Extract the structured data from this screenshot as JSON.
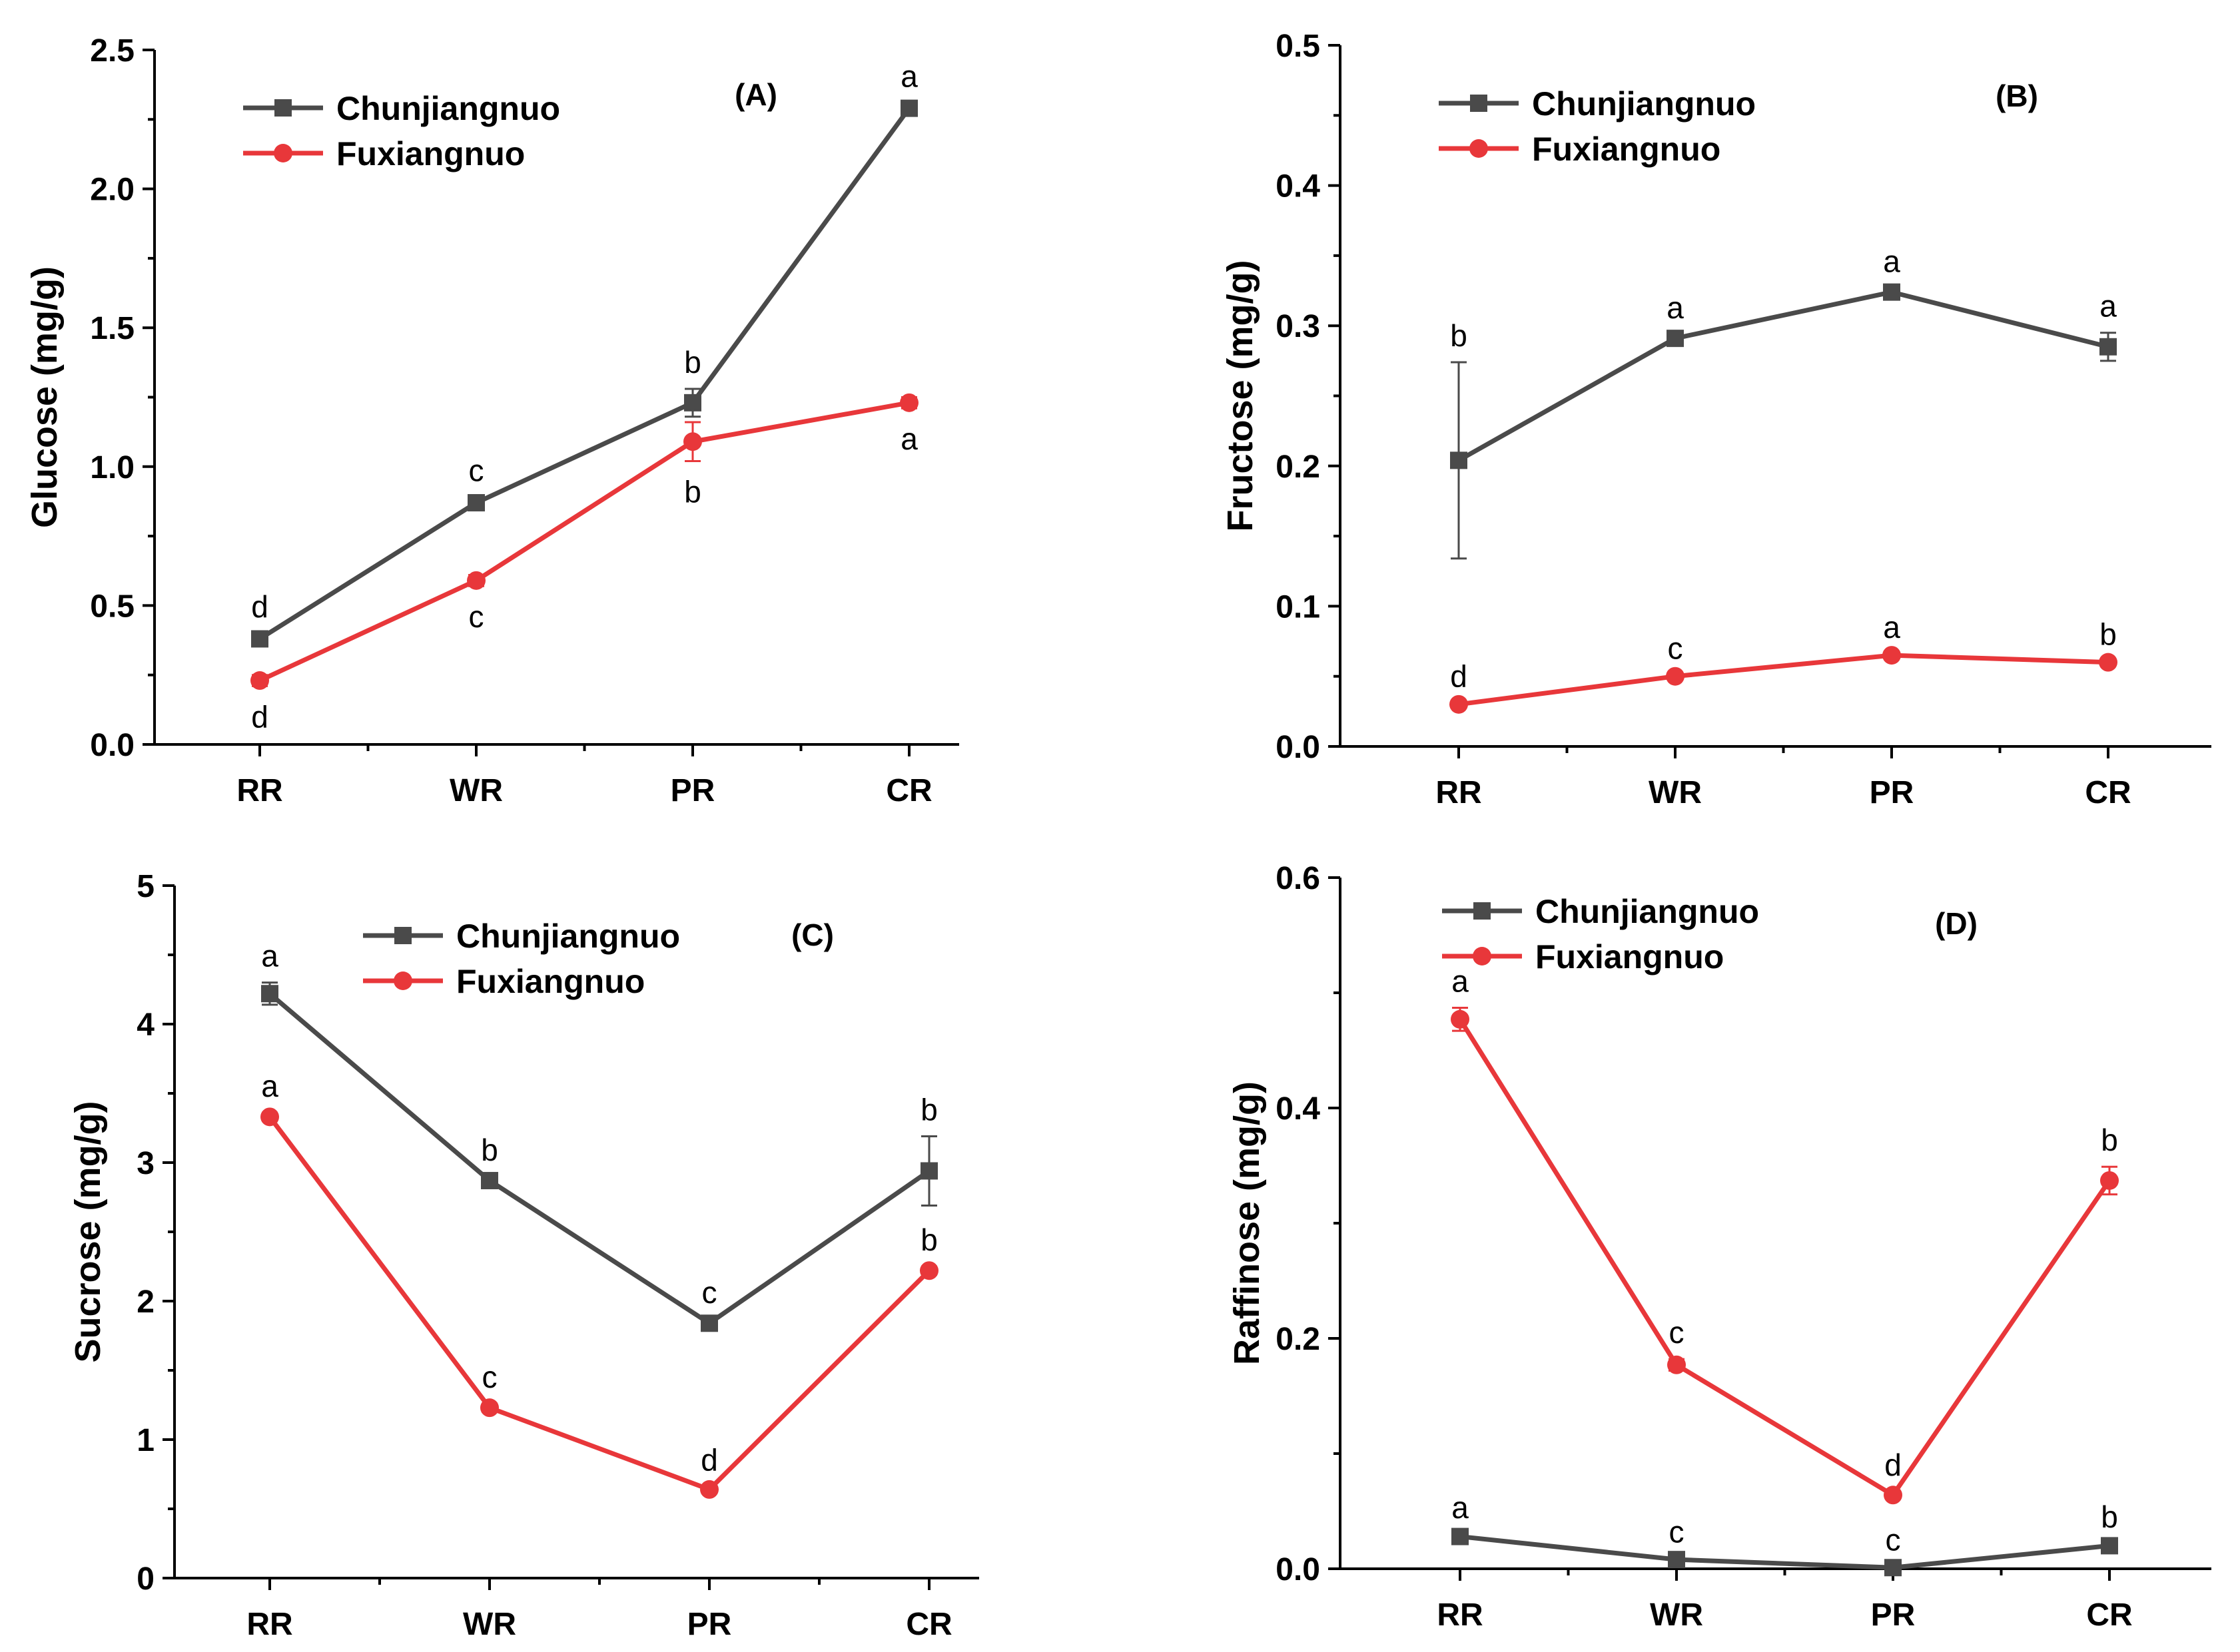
{
  "colors": {
    "Chunjiangnuo": "#4a4a4a",
    "Fuxiangnuo": "#e8373a"
  },
  "chart_data": [
    {
      "type": "line",
      "panel": "(A)",
      "ylabel": "Glucose (mg/g)",
      "xlabel": "",
      "categories": [
        "RR",
        "WR",
        "PR",
        "CR"
      ],
      "ylim": [
        0,
        2.5
      ],
      "yticks": [
        0.0,
        0.5,
        1.0,
        1.5,
        2.0,
        2.5
      ],
      "ytick_labels": [
        "0.0",
        "0.5",
        "1.0",
        "1.5",
        "2.0",
        "2.5"
      ],
      "legend_position": "top-left",
      "series": [
        {
          "name": "Chunjiangnuo",
          "marker": "square",
          "values": [
            0.38,
            0.87,
            1.23,
            2.29
          ],
          "errors": [
            0.02,
            0.02,
            0.05,
            0.02
          ],
          "letters": [
            "d",
            "c",
            "b",
            "a"
          ],
          "letter_position": "above"
        },
        {
          "name": "Fuxiangnuo",
          "marker": "circle",
          "values": [
            0.23,
            0.59,
            1.09,
            1.23
          ],
          "errors": [
            0.02,
            0.02,
            0.07,
            0.02
          ],
          "letters": [
            "d",
            "c",
            "b",
            "a"
          ],
          "letter_position": "below"
        }
      ]
    },
    {
      "type": "line",
      "panel": "(B)",
      "ylabel": "Fructose (mg/g)",
      "xlabel": "",
      "categories": [
        "RR",
        "WR",
        "PR",
        "CR"
      ],
      "ylim": [
        0,
        0.5
      ],
      "yticks": [
        0.0,
        0.1,
        0.2,
        0.3,
        0.4,
        0.5
      ],
      "ytick_labels": [
        "0.0",
        "0.1",
        "0.2",
        "0.3",
        "0.4",
        "0.5"
      ],
      "legend_position": "top-left",
      "series": [
        {
          "name": "Chunjiangnuo",
          "marker": "square",
          "values": [
            0.204,
            0.291,
            0.324,
            0.285
          ],
          "errors": [
            0.07,
            0.003,
            0.003,
            0.01
          ],
          "letters": [
            "b",
            "a",
            "a",
            "a"
          ],
          "letter_position": "above"
        },
        {
          "name": "Fuxiangnuo",
          "marker": "circle",
          "values": [
            0.03,
            0.05,
            0.065,
            0.06
          ],
          "errors": [
            0.001,
            0.001,
            0.001,
            0.001
          ],
          "letters": [
            "d",
            "c",
            "a",
            "b"
          ],
          "letter_position": "above"
        }
      ]
    },
    {
      "type": "line",
      "panel": "(C)",
      "ylabel": "Sucrose (mg/g)",
      "xlabel": "",
      "categories": [
        "RR",
        "WR",
        "PR",
        "CR"
      ],
      "ylim": [
        0,
        5
      ],
      "yticks": [
        0,
        1,
        2,
        3,
        4,
        5
      ],
      "ytick_labels": [
        "0",
        "1",
        "2",
        "3",
        "4",
        "5"
      ],
      "legend_position": "top-center",
      "series": [
        {
          "name": "Chunjiangnuo",
          "marker": "square",
          "values": [
            4.22,
            2.87,
            1.84,
            2.94
          ],
          "errors": [
            0.08,
            0.03,
            0.03,
            0.25
          ],
          "letters": [
            "a",
            "b",
            "c",
            "b"
          ],
          "letter_position": "above"
        },
        {
          "name": "Fuxiangnuo",
          "marker": "circle",
          "values": [
            3.33,
            1.23,
            0.64,
            2.22
          ],
          "errors": [
            0.03,
            0.03,
            0.02,
            0.03
          ],
          "letters": [
            "a",
            "c",
            "d",
            "b"
          ],
          "letter_position": "above"
        }
      ]
    },
    {
      "type": "line",
      "panel": "(D)",
      "ylabel": "Raffinose (mg/g)",
      "xlabel": "",
      "categories": [
        "RR",
        "WR",
        "PR",
        "CR"
      ],
      "ylim": [
        0,
        0.6
      ],
      "yticks": [
        0.0,
        0.2,
        0.4,
        0.6
      ],
      "ytick_labels": [
        "0.0",
        "0.2",
        "0.4",
        "0.6"
      ],
      "legend_position": "top-left",
      "series": [
        {
          "name": "Chunjiangnuo",
          "marker": "square",
          "values": [
            0.028,
            0.008,
            0.001,
            0.02
          ],
          "errors": [
            0.002,
            0.001,
            0.001,
            0.002
          ],
          "letters": [
            "a",
            "c",
            "c",
            "b"
          ],
          "letter_position": "above"
        },
        {
          "name": "Fuxiangnuo",
          "marker": "circle",
          "values": [
            0.477,
            0.177,
            0.064,
            0.337
          ],
          "errors": [
            0.01,
            0.005,
            0.003,
            0.012
          ],
          "letters": [
            "a",
            "c",
            "d",
            "b"
          ],
          "letter_position": "above"
        }
      ]
    }
  ]
}
